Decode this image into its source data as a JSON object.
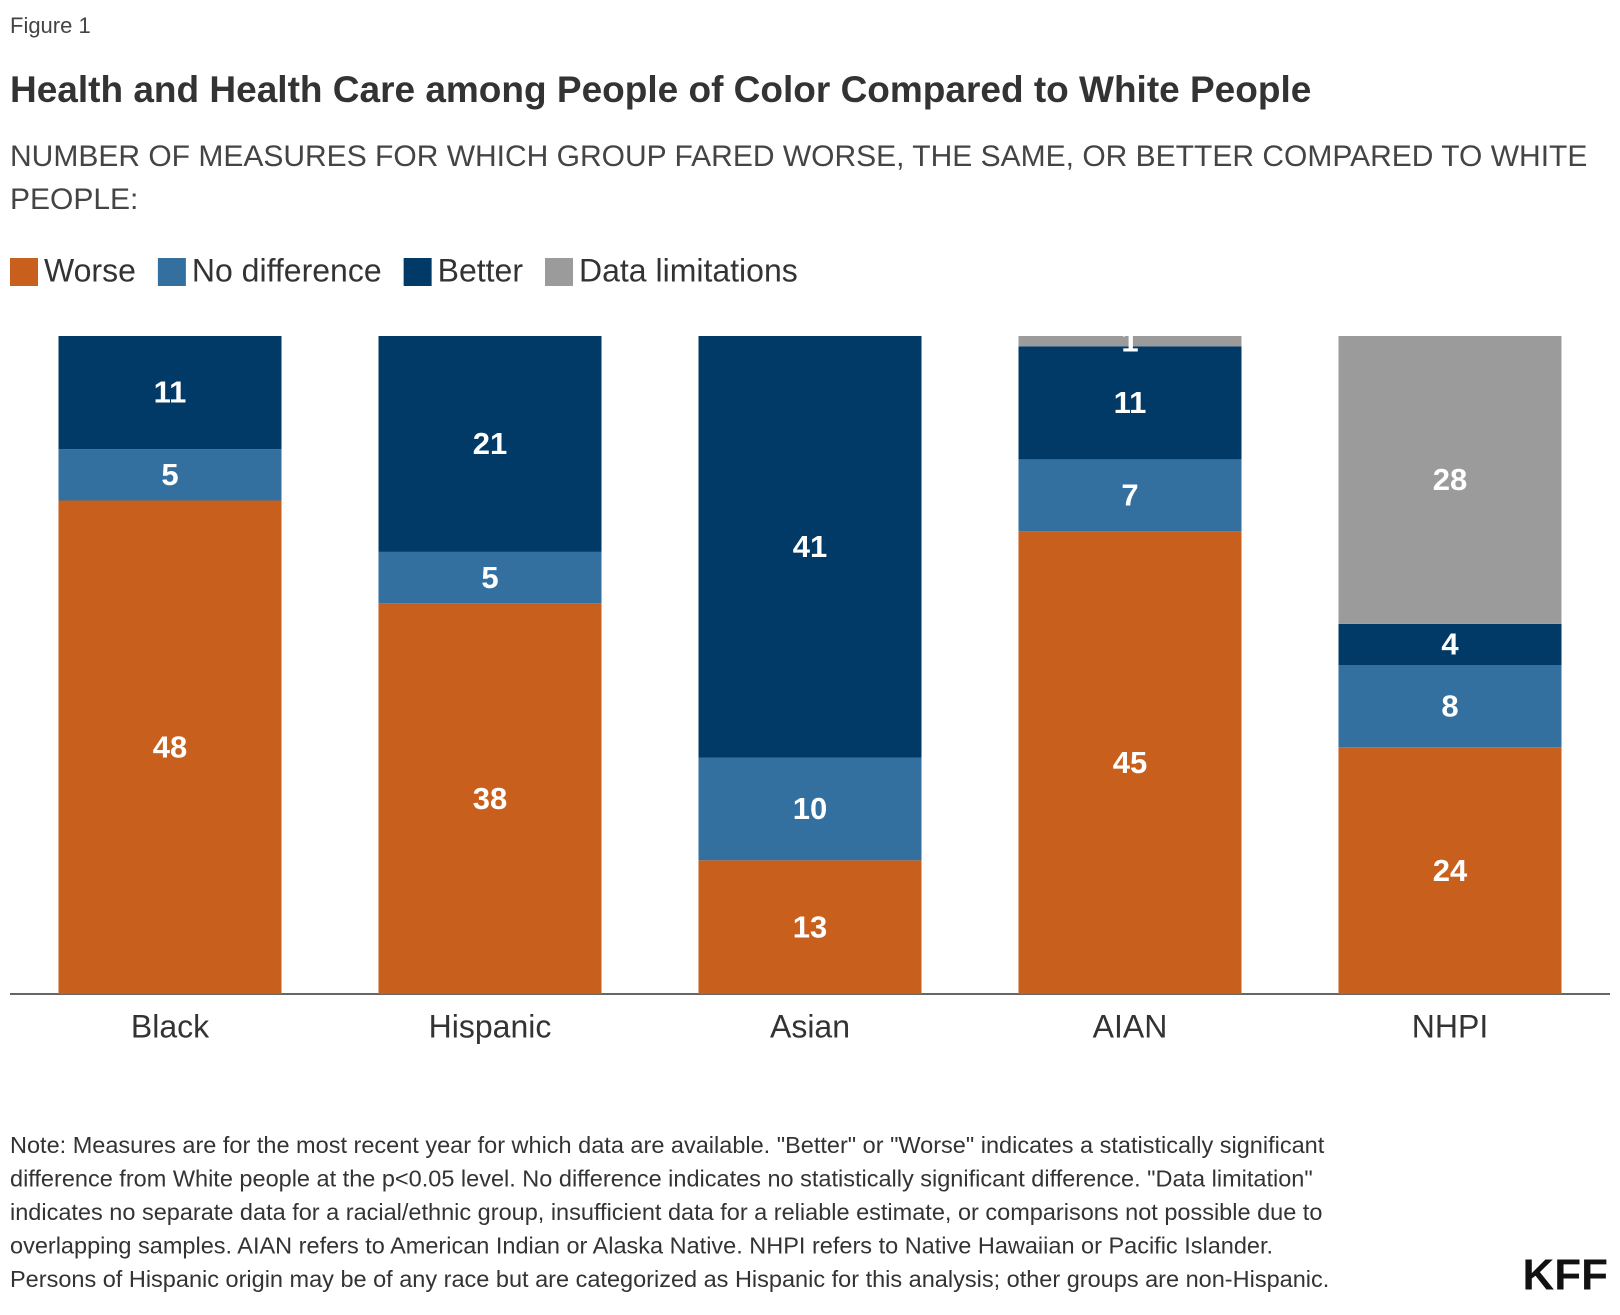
{
  "figure_label": "Figure 1",
  "chart_data": {
    "type": "stacked-bar",
    "title": "Health and Health Care among People of Color Compared to White People",
    "subtitle": "NUMBER OF MEASURES FOR WHICH GROUP FARED WORSE, THE SAME, OR BETTER COMPARED TO WHITE PEOPLE:",
    "categories": [
      "Black",
      "Hispanic",
      "Asian",
      "AIAN",
      "NHPI"
    ],
    "series": [
      {
        "name": "Worse",
        "color": "#c95f1c",
        "values": [
          48,
          38,
          13,
          45,
          24
        ]
      },
      {
        "name": "No difference",
        "color": "#336f9f",
        "values": [
          5,
          5,
          10,
          7,
          8
        ]
      },
      {
        "name": "Better",
        "color": "#023a67",
        "values": [
          11,
          21,
          41,
          11,
          4
        ]
      },
      {
        "name": "Data limitations",
        "color": "#9b9b9b",
        "values": [
          0,
          0,
          0,
          1,
          28
        ]
      }
    ]
  },
  "note": [
    "Note: Measures are for the most recent year for which data are available. \"Better\" or \"Worse\" indicates a statistically significant",
    "difference from White people at the p<0.05 level. No difference indicates no statistically significant difference. \"Data limitation\"",
    "indicates no separate data for a racial/ethnic group, insufficient data for a reliable estimate, or comparisons not possible due to",
    "overlapping samples. AIAN refers to American Indian or Alaska Native. NHPI refers to Native Hawaiian or Pacific Islander.",
    "Persons of Hispanic origin may be of any race but are categorized as Hispanic for this analysis; other groups are non-Hispanic."
  ],
  "logo": "KFF"
}
